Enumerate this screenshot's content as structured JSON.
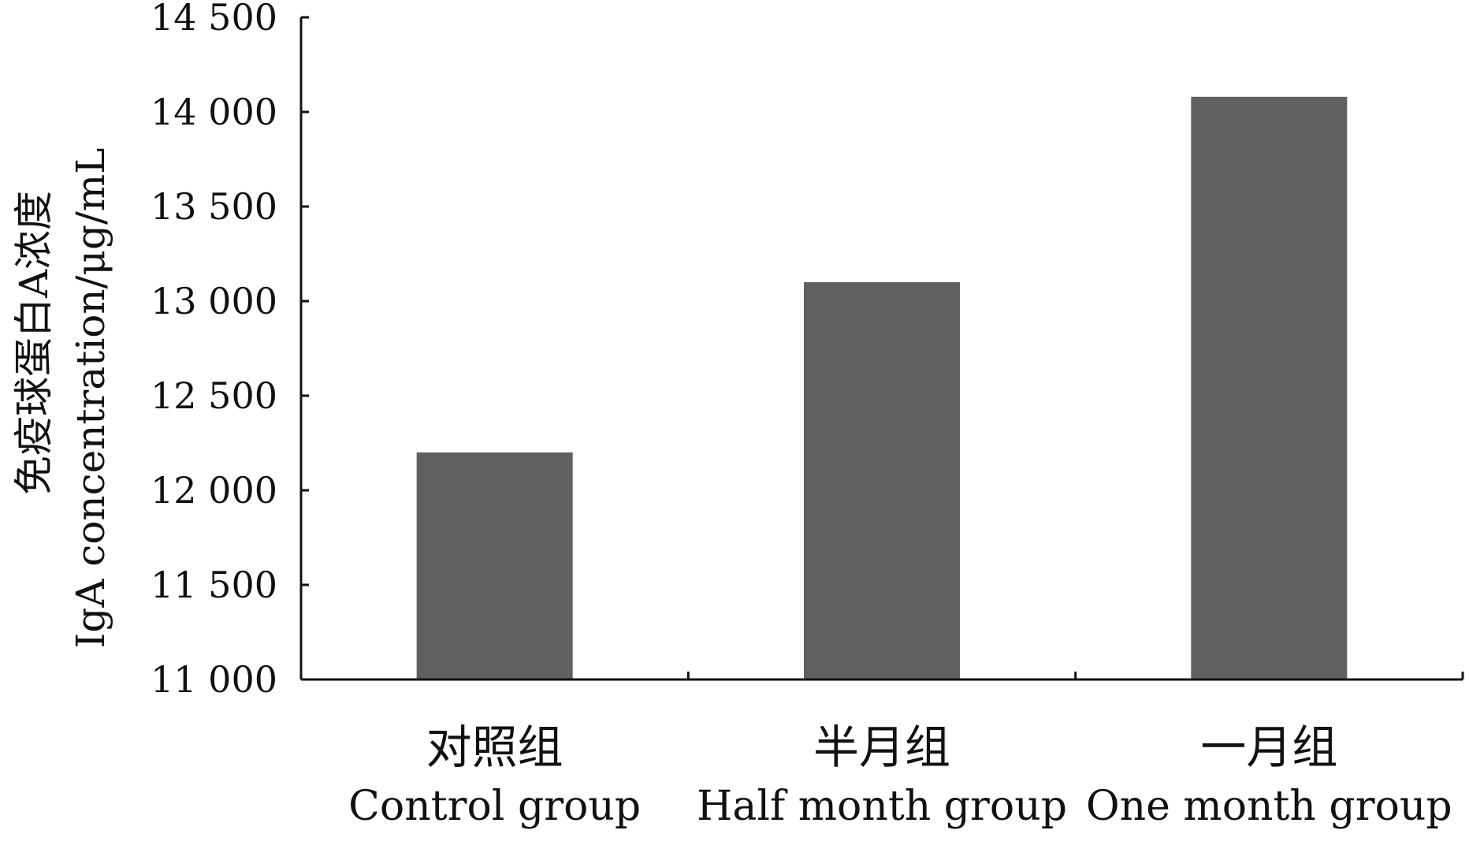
{
  "chart_data": {
    "type": "bar",
    "categories": [
      {
        "cn": "对照组",
        "en": "Control group"
      },
      {
        "cn": "半月组",
        "en": "Half month group"
      },
      {
        "cn": "一月组",
        "en": "One month group"
      }
    ],
    "values": [
      12200,
      13100,
      14080
    ],
    "ylabel_cn": "免疫球蛋白A浓度",
    "ylabel_en": "IgA concentration/μg/mL",
    "ylim": [
      11000,
      14500
    ],
    "yticks": [
      11000,
      11500,
      12000,
      12500,
      13000,
      13500,
      14000,
      14500
    ],
    "ytick_labels": [
      "11 000",
      "11 500",
      "12 000",
      "12 500",
      "13 000",
      "13 500",
      "14 000",
      "14 500"
    ],
    "grid": false,
    "legend": "none",
    "bar_color": "#606060",
    "axis_color": "#111111"
  }
}
